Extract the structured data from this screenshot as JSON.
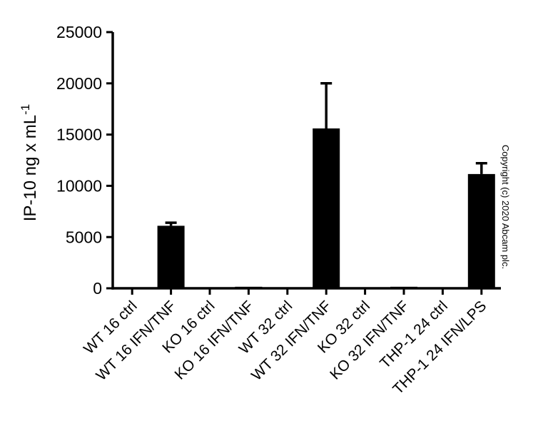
{
  "chart_data": {
    "type": "bar",
    "title": "",
    "xlabel": "",
    "ylabel": "IP-10 ng x mL^-1",
    "ylabel_base": "IP-10 ng x mL",
    "ylabel_exponent": "-1",
    "categories": [
      "WT 16 ctrl",
      "WT 16 IFN/TNF",
      "KO 16 ctrl",
      "KO 16 IFN/TNF",
      "WT 32 ctrl",
      "WT 32 IFN/TNF",
      "KO 32 ctrl",
      "KO 32 IFN/TNF",
      "THP-1 24 ctrl",
      "THP-1 24 IFN/LPS"
    ],
    "values": [
      0,
      6100,
      0,
      150,
      0,
      15600,
      0,
      150,
      0,
      11150
    ],
    "errors": [
      0,
      300,
      0,
      0,
      0,
      4400,
      0,
      0,
      0,
      1050
    ],
    "error_direction": "plus",
    "ylim": [
      0,
      25000
    ],
    "yticks": [
      0,
      5000,
      10000,
      15000,
      20000,
      25000
    ],
    "bar_color": "#000000",
    "error_color": "#000000",
    "axis_color": "#000000",
    "grid": false,
    "legend": null,
    "x_tick_label_rotation": 45
  },
  "copyright": "Copyright (c) 2020 Abcam plc."
}
